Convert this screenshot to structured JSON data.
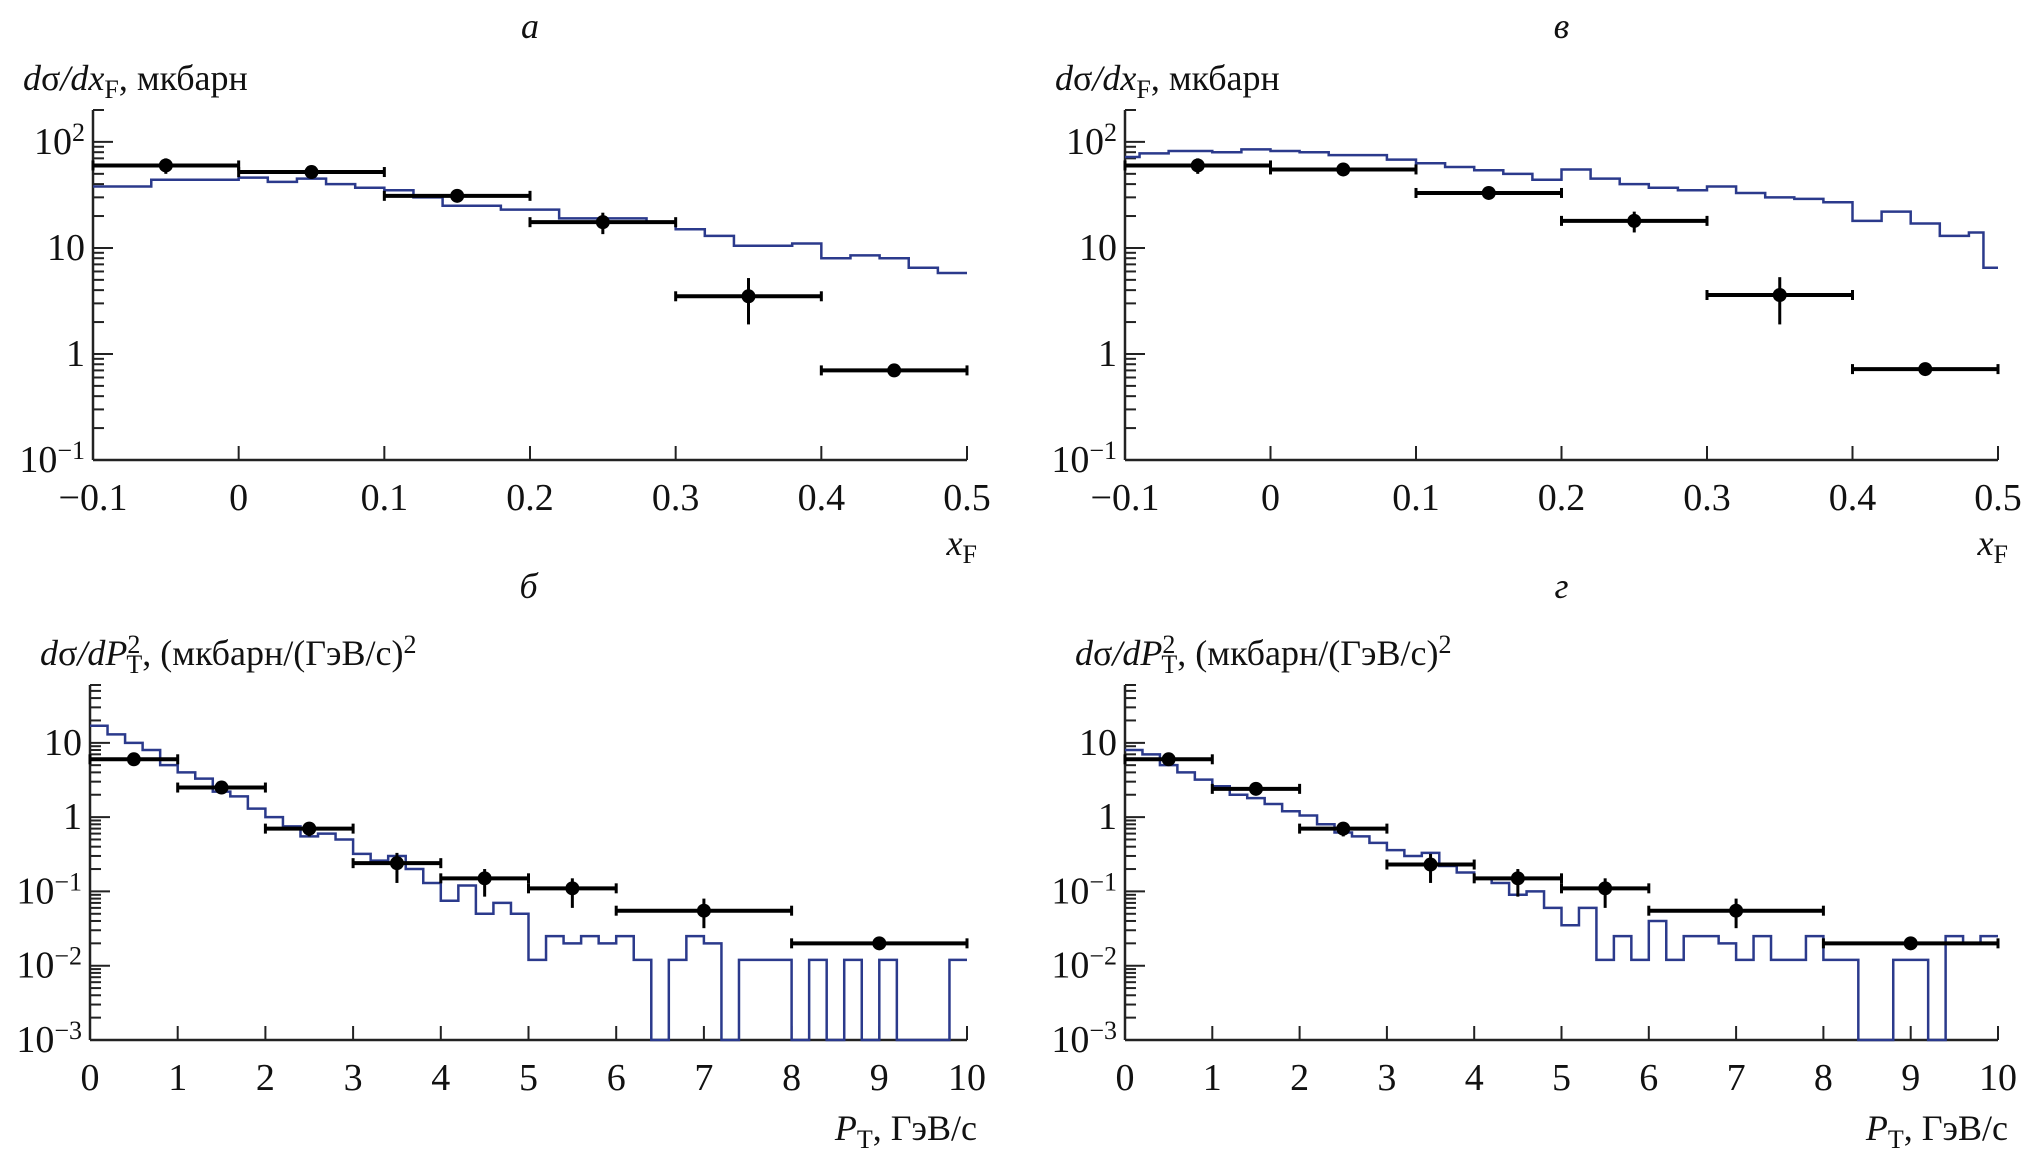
{
  "colors": {
    "mc": "#2b3a8c",
    "data": "#000000"
  },
  "chart_data": [
    {
      "type": "line",
      "panel": "а",
      "yscale": "log",
      "xlim": [
        -0.1,
        0.5
      ],
      "ylim": [
        0.1,
        200
      ],
      "xticks": [
        "-0.1",
        "0",
        "0.1",
        "0.2",
        "0.3",
        "0.4",
        "0.5"
      ],
      "yticks": [
        {
          "v": 100,
          "base": "10",
          "exp": "2"
        },
        {
          "v": 10,
          "base": "10",
          "exp": ""
        },
        {
          "v": 1,
          "base": "1",
          "exp": ""
        },
        {
          "v": 0.1,
          "base": "10",
          "exp": "−1"
        }
      ],
      "xlabel": [
        [
          "x",
          "i"
        ],
        [
          "F",
          "sub"
        ]
      ],
      "ylabel": [
        [
          "d",
          "i"
        ],
        [
          "σ",
          ""
        ],
        [
          "/dx",
          "i"
        ],
        [
          "F",
          "sub"
        ],
        [
          ", мкбарн",
          ""
        ]
      ],
      "histogram": {
        "edges": [
          -0.1,
          -0.06,
          0,
          0.02,
          0.04,
          0.06,
          0.08,
          0.1,
          0.12,
          0.14,
          0.18,
          0.22,
          0.28,
          0.3,
          0.32,
          0.34,
          0.38,
          0.4,
          0.42,
          0.44,
          0.46,
          0.48,
          0.5
        ],
        "values": [
          38,
          44,
          46,
          42,
          45,
          40,
          37,
          35,
          30,
          25,
          23,
          19,
          17.5,
          15,
          13,
          10.5,
          11,
          8,
          8.5,
          8,
          6.5,
          5.8
        ]
      },
      "points": [
        {
          "x": -0.05,
          "y": 60,
          "xerr": 0.05,
          "ylo": 50,
          "yhi": 70
        },
        {
          "x": 0.05,
          "y": 52,
          "xerr": 0.05,
          "ylo": 45,
          "yhi": 59
        },
        {
          "x": 0.15,
          "y": 31,
          "xerr": 0.05,
          "ylo": 27,
          "yhi": 35
        },
        {
          "x": 0.25,
          "y": 17.5,
          "xerr": 0.05,
          "ylo": 13.5,
          "yhi": 21.5
        },
        {
          "x": 0.35,
          "y": 3.5,
          "xerr": 0.05,
          "ylo": 1.9,
          "yhi": 5.2
        },
        {
          "x": 0.45,
          "y": 0.7,
          "xerr": 0.05,
          "ylo": 0.65,
          "yhi": 0.75
        }
      ]
    },
    {
      "type": "line",
      "panel": "б",
      "yscale": "log",
      "xlim": [
        0,
        10
      ],
      "ylim": [
        0.001,
        60
      ],
      "xticks": [
        "0",
        "1",
        "2",
        "3",
        "4",
        "5",
        "6",
        "7",
        "8",
        "9",
        "10"
      ],
      "yticks": [
        {
          "v": 10,
          "base": "10",
          "exp": ""
        },
        {
          "v": 1,
          "base": "1",
          "exp": ""
        },
        {
          "v": 0.1,
          "base": "10",
          "exp": "−1"
        },
        {
          "v": 0.01,
          "base": "10",
          "exp": "−2"
        },
        {
          "v": 0.001,
          "base": "10",
          "exp": "−3"
        }
      ],
      "xlabel": [
        [
          "P",
          "i"
        ],
        [
          "T",
          "sub"
        ],
        [
          ", ГэВ/с",
          ""
        ]
      ],
      "ylabel": [
        [
          "d",
          "i"
        ],
        [
          "σ",
          ""
        ],
        [
          "/dP",
          "i"
        ],
        [
          "2",
          "supsub"
        ],
        [
          "T",
          "subsup"
        ],
        [
          ", (мкбарн/(ГэВ/с)",
          ""
        ],
        [
          "2",
          "sup"
        ]
      ],
      "histogram": {
        "bin_width": 0.2,
        "start": 0,
        "values": [
          17,
          13,
          10,
          8,
          5,
          4,
          3.3,
          2.2,
          1.9,
          1.3,
          1.0,
          0.75,
          0.55,
          0.6,
          0.5,
          0.32,
          0.26,
          0.3,
          0.2,
          0.13,
          0.075,
          0.12,
          0.05,
          0.07,
          0.05,
          0.012,
          0.025,
          0.02,
          0.025,
          0.02,
          0.025,
          0.012,
          0,
          0.012,
          0.025,
          0.02,
          0,
          0.012,
          0.012,
          0.012,
          0,
          0.012,
          0,
          0.012,
          0,
          0.012,
          0,
          0,
          0,
          0.012
        ]
      },
      "points": [
        {
          "x": 0.5,
          "y": 6,
          "xerr": 0.5,
          "ylo": 5.3,
          "yhi": 6.8
        },
        {
          "x": 1.5,
          "y": 2.5,
          "xerr": 0.5,
          "ylo": 2.1,
          "yhi": 2.9
        },
        {
          "x": 2.5,
          "y": 0.7,
          "xerr": 0.5,
          "ylo": 0.55,
          "yhi": 0.85
        },
        {
          "x": 3.5,
          "y": 0.24,
          "xerr": 0.5,
          "ylo": 0.13,
          "yhi": 0.33
        },
        {
          "x": 4.5,
          "y": 0.15,
          "xerr": 0.5,
          "ylo": 0.085,
          "yhi": 0.2
        },
        {
          "x": 5.5,
          "y": 0.11,
          "xerr": 0.5,
          "ylo": 0.06,
          "yhi": 0.15
        },
        {
          "x": 7,
          "y": 0.055,
          "xerr": 1,
          "ylo": 0.032,
          "yhi": 0.08
        },
        {
          "x": 9,
          "y": 0.02,
          "xerr": 1,
          "ylo": 0.018,
          "yhi": 0.022
        }
      ]
    },
    {
      "type": "line",
      "panel": "в",
      "yscale": "log",
      "xlim": [
        -0.1,
        0.5
      ],
      "ylim": [
        0.1,
        200
      ],
      "xticks": [
        "-0.1",
        "0",
        "0.1",
        "0.2",
        "0.3",
        "0.4",
        "0.5"
      ],
      "yticks": [
        {
          "v": 100,
          "base": "10",
          "exp": "2"
        },
        {
          "v": 10,
          "base": "10",
          "exp": ""
        },
        {
          "v": 1,
          "base": "1",
          "exp": ""
        },
        {
          "v": 0.1,
          "base": "10",
          "exp": "−1"
        }
      ],
      "xlabel": [
        [
          "x",
          "i"
        ],
        [
          "F",
          "sub"
        ]
      ],
      "ylabel": [
        [
          "d",
          "i"
        ],
        [
          "σ",
          ""
        ],
        [
          "/dx",
          "i"
        ],
        [
          "F",
          "sub"
        ],
        [
          ", мкбарн",
          ""
        ]
      ],
      "histogram": {
        "edges": [
          -0.1,
          -0.09,
          -0.07,
          -0.04,
          -0.02,
          0,
          0.02,
          0.04,
          0.08,
          0.1,
          0.12,
          0.14,
          0.16,
          0.18,
          0.2,
          0.22,
          0.24,
          0.26,
          0.28,
          0.3,
          0.32,
          0.34,
          0.36,
          0.38,
          0.4,
          0.42,
          0.44,
          0.46,
          0.48,
          0.49,
          0.5
        ],
        "values": [
          72,
          78,
          82,
          80,
          85,
          82,
          80,
          75,
          68,
          63,
          58,
          54,
          50,
          44,
          55,
          45,
          40,
          37,
          35,
          38,
          33,
          30,
          29,
          27,
          18,
          22,
          17,
          13,
          14,
          6.5
        ]
      },
      "points": [
        {
          "x": -0.05,
          "y": 60,
          "xerr": 0.05,
          "ylo": 50,
          "yhi": 70
        },
        {
          "x": 0.05,
          "y": 55,
          "xerr": 0.05,
          "ylo": 48,
          "yhi": 62
        },
        {
          "x": 0.15,
          "y": 33,
          "xerr": 0.05,
          "ylo": 29,
          "yhi": 37
        },
        {
          "x": 0.25,
          "y": 18,
          "xerr": 0.05,
          "ylo": 14,
          "yhi": 22
        },
        {
          "x": 0.35,
          "y": 3.6,
          "xerr": 0.05,
          "ylo": 1.9,
          "yhi": 5.3
        },
        {
          "x": 0.45,
          "y": 0.72,
          "xerr": 0.05,
          "ylo": 0.66,
          "yhi": 0.78
        }
      ]
    },
    {
      "type": "line",
      "panel": "г",
      "yscale": "log",
      "xlim": [
        0,
        10
      ],
      "ylim": [
        0.001,
        60
      ],
      "xticks": [
        "0",
        "1",
        "2",
        "3",
        "4",
        "5",
        "6",
        "7",
        "8",
        "9",
        "10"
      ],
      "yticks": [
        {
          "v": 10,
          "base": "10",
          "exp": ""
        },
        {
          "v": 1,
          "base": "1",
          "exp": ""
        },
        {
          "v": 0.1,
          "base": "10",
          "exp": "−1"
        },
        {
          "v": 0.01,
          "base": "10",
          "exp": "−2"
        },
        {
          "v": 0.001,
          "base": "10",
          "exp": "−3"
        }
      ],
      "xlabel": [
        [
          "P",
          "i"
        ],
        [
          "T",
          "sub"
        ],
        [
          ", ГэВ/с",
          ""
        ]
      ],
      "ylabel": [
        [
          "d",
          "i"
        ],
        [
          "σ",
          ""
        ],
        [
          "/dP",
          "i"
        ],
        [
          "2",
          "supsub"
        ],
        [
          "T",
          "subsup"
        ],
        [
          ", (мкбарн/(ГэВ/с)",
          ""
        ],
        [
          "2",
          "sup"
        ]
      ],
      "histogram": {
        "bin_width": 0.2,
        "start": 0,
        "values": [
          8,
          7,
          5,
          4,
          3.2,
          2.6,
          2.0,
          1.8,
          1.5,
          1.2,
          1.05,
          0.8,
          0.62,
          0.55,
          0.45,
          0.36,
          0.3,
          0.33,
          0.22,
          0.18,
          0.15,
          0.13,
          0.09,
          0.1,
          0.06,
          0.035,
          0.06,
          0.012,
          0.025,
          0.012,
          0.04,
          0.012,
          0.025,
          0.025,
          0.02,
          0.012,
          0.025,
          0.012,
          0.012,
          0.025,
          0.012,
          0.012,
          0,
          0,
          0.012,
          0.012,
          0,
          0.025,
          0.02,
          0.025
        ]
      },
      "points": [
        {
          "x": 0.5,
          "y": 6,
          "xerr": 0.5,
          "ylo": 5.3,
          "yhi": 6.8
        },
        {
          "x": 1.5,
          "y": 2.4,
          "xerr": 0.5,
          "ylo": 2.0,
          "yhi": 2.8
        },
        {
          "x": 2.5,
          "y": 0.7,
          "xerr": 0.5,
          "ylo": 0.55,
          "yhi": 0.85
        },
        {
          "x": 3.5,
          "y": 0.23,
          "xerr": 0.5,
          "ylo": 0.13,
          "yhi": 0.32
        },
        {
          "x": 4.5,
          "y": 0.15,
          "xerr": 0.5,
          "ylo": 0.085,
          "yhi": 0.2
        },
        {
          "x": 5.5,
          "y": 0.11,
          "xerr": 0.5,
          "ylo": 0.06,
          "yhi": 0.15
        },
        {
          "x": 7,
          "y": 0.055,
          "xerr": 1,
          "ylo": 0.032,
          "yhi": 0.08
        },
        {
          "x": 9,
          "y": 0.02,
          "xerr": 1,
          "ylo": 0.018,
          "yhi": 0.022
        }
      ]
    }
  ]
}
